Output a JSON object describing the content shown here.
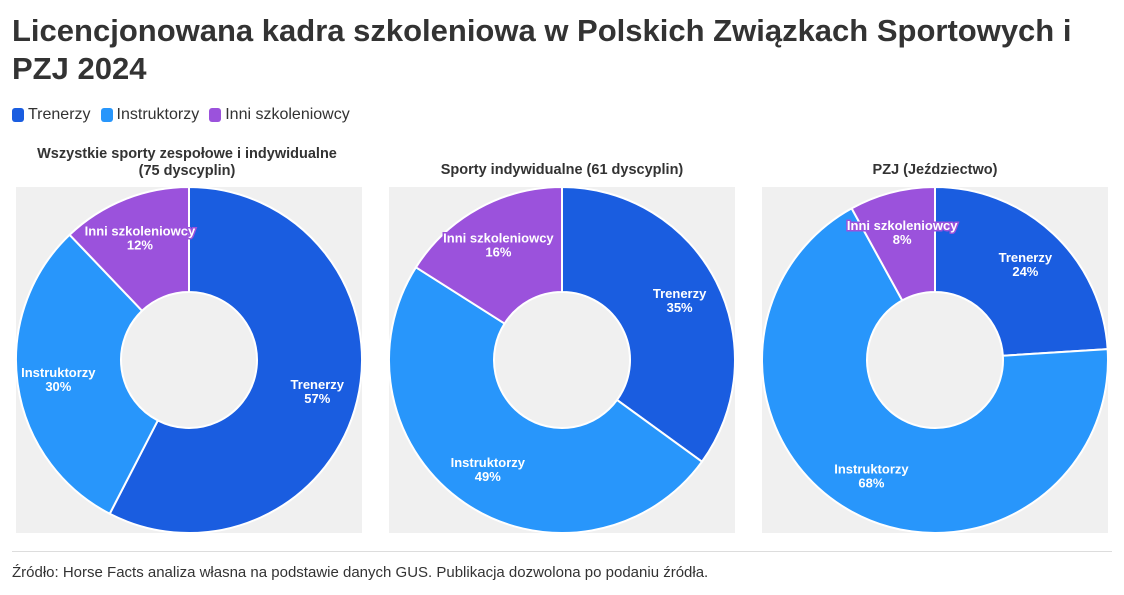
{
  "title": "Licencjonowana kadra szkoleniowa w Polskich Związkach Sportowych i PZJ 2024",
  "legend": [
    {
      "label": "Trenerzy",
      "color": "#1a5de0"
    },
    {
      "label": "Instruktorzy",
      "color": "#2896fb"
    },
    {
      "label": "Inni szkoleniowcy",
      "color": "#9b52dc"
    }
  ],
  "source": "Źródło: Horse Facts analiza własna na podstawie danych GUS. Publikacja dozwolona po podaniu źródła.",
  "chart_data": [
    {
      "type": "pie",
      "title_lines": [
        "Wszystkie sporty zespołowe i indywidualne",
        "(75 dyscyplin)"
      ],
      "categories": [
        "Trenerzy",
        "Instruktorzy",
        "Inni szkoleniowcy"
      ],
      "values": [
        57,
        30,
        12
      ],
      "labels": [
        "57%",
        "30%",
        "12%"
      ],
      "colors": [
        "#1a5de0",
        "#2896fb",
        "#9b52dc"
      ]
    },
    {
      "type": "pie",
      "title_lines": [
        "Sporty indywidualne (61 dyscyplin)"
      ],
      "categories": [
        "Trenerzy",
        "Instruktorzy",
        "Inni szkoleniowcy"
      ],
      "values": [
        35,
        49,
        16
      ],
      "labels": [
        "35%",
        "49%",
        "16%"
      ],
      "colors": [
        "#1a5de0",
        "#2896fb",
        "#9b52dc"
      ]
    },
    {
      "type": "pie",
      "title_lines": [
        "PZJ (Jeździectwo)"
      ],
      "categories": [
        "Trenerzy",
        "Instruktorzy",
        "Inni szkoleniowcy"
      ],
      "values": [
        24,
        68,
        8
      ],
      "labels": [
        "24%",
        "68%",
        "8%"
      ],
      "colors": [
        "#1a5de0",
        "#2896fb",
        "#9b52dc"
      ]
    }
  ]
}
